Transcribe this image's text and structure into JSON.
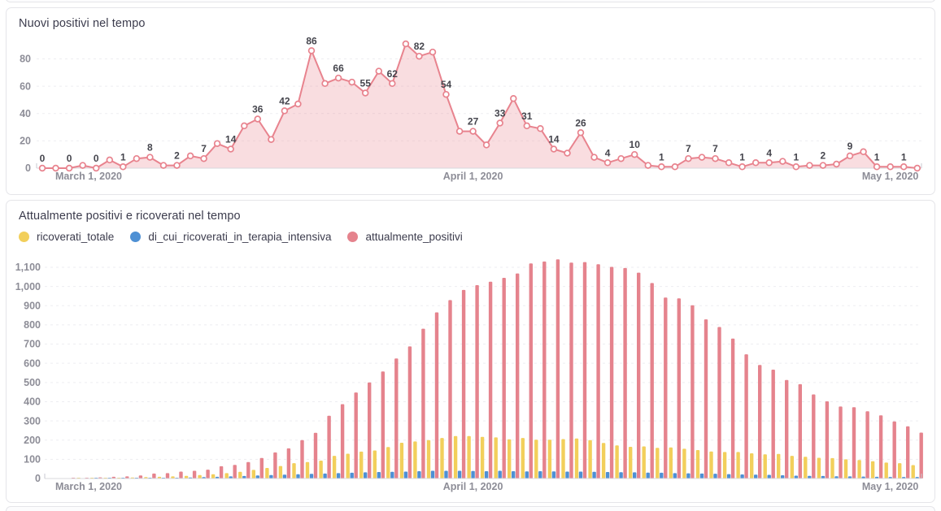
{
  "page": {
    "background": "#ffffff",
    "card_border_color": "#e5e5e9"
  },
  "chart_data": [
    {
      "type": "line",
      "title": "Nuovi positivi nel tempo",
      "x_axis": {
        "tick_labels": [
          "March 1, 2020",
          "April 1, 2020",
          "May 1, 2020"
        ],
        "tick_slots": [
          0,
          32,
          63
        ]
      },
      "ylabel": "",
      "xlabel": "",
      "ylim": [
        0,
        93
      ],
      "yticks": [
        0,
        20,
        40,
        60,
        80
      ],
      "grid": true,
      "line_color": "#e8838e",
      "area_fill": "rgba(232,131,142,0.27)",
      "marker_fill": "#ffffff",
      "point_labels_every": 2,
      "values": [
        0,
        0,
        0,
        2,
        0,
        6,
        1,
        7,
        8,
        2,
        2,
        9,
        7,
        18,
        14,
        31,
        36,
        21,
        42,
        47,
        86,
        62,
        66,
        63,
        55,
        71,
        62,
        91,
        82,
        85,
        54,
        27,
        27,
        17,
        33,
        51,
        31,
        29,
        14,
        11,
        26,
        8,
        4,
        7,
        10,
        2,
        1,
        1,
        7,
        8,
        7,
        4,
        1,
        4,
        4,
        5,
        1,
        2,
        2,
        3,
        9,
        12,
        1,
        1,
        1,
        0
      ],
      "shown_point_labels": [
        "0",
        "0",
        "0",
        "1",
        "8",
        "2",
        "7",
        "14",
        "36",
        "42",
        "86",
        "66",
        "55",
        "62",
        "82",
        "54",
        "27",
        "33",
        "31",
        "14",
        "26",
        "4",
        "10",
        "1",
        "7",
        "7",
        "1",
        "4",
        "1",
        "2",
        "9",
        "1",
        "1"
      ]
    },
    {
      "type": "bar",
      "title": "Attualmente positivi e ricoverati nel tempo",
      "x_axis": {
        "tick_labels": [
          "March 1, 2020",
          "April 1, 2020",
          "May 1, 2020"
        ],
        "tick_slots": [
          0,
          32,
          63
        ]
      },
      "ylabel": "",
      "xlabel": "",
      "ylim": [
        0,
        1160
      ],
      "yticks": [
        0,
        100,
        200,
        300,
        400,
        500,
        600,
        700,
        800,
        900,
        1000,
        1100
      ],
      "grid": true,
      "legend_position": "top",
      "series": [
        {
          "name": "ricoverati_totale",
          "color": "#f2cf5b",
          "values": [
            0,
            0,
            0,
            1,
            1,
            2,
            3,
            5,
            7,
            9,
            11,
            14,
            18,
            22,
            28,
            35,
            45,
            55,
            65,
            80,
            86,
            93,
            118,
            129,
            140,
            146,
            164,
            186,
            193,
            200,
            211,
            221,
            221,
            217,
            214,
            204,
            211,
            202,
            202,
            205,
            208,
            200,
            185,
            172,
            165,
            167,
            160,
            162,
            155,
            148,
            141,
            138,
            138,
            131,
            126,
            128,
            118,
            113,
            108,
            106,
            100,
            96,
            90,
            83,
            80,
            70
          ]
        },
        {
          "name": "di_cui_ricoverati_in_terapia_intensiva",
          "color": "#4e90d4",
          "values": [
            0,
            0,
            0,
            0,
            1,
            1,
            1,
            2,
            3,
            3,
            4,
            5,
            7,
            9,
            11,
            13,
            16,
            18,
            20,
            22,
            24,
            26,
            28,
            30,
            32,
            34,
            35,
            36,
            38,
            40,
            40,
            40,
            39,
            38,
            40,
            38,
            37,
            38,
            37,
            36,
            36,
            35,
            34,
            33,
            32,
            31,
            30,
            28,
            27,
            26,
            25,
            23,
            21,
            20,
            19,
            17,
            15,
            14,
            13,
            12,
            11,
            10,
            9,
            8,
            8,
            8
          ]
        },
        {
          "name": "attualmente_positivi",
          "color": "#e5838d",
          "values": [
            0,
            0,
            2,
            4,
            6,
            9,
            11,
            16,
            26,
            28,
            36,
            40,
            46,
            64,
            71,
            86,
            107,
            136,
            157,
            200,
            238,
            327,
            387,
            448,
            500,
            557,
            625,
            688,
            780,
            865,
            929,
            982,
            1007,
            1025,
            1045,
            1068,
            1120,
            1130,
            1141,
            1124,
            1127,
            1116,
            1102,
            1096,
            1072,
            1018,
            942,
            938,
            902,
            829,
            789,
            729,
            647,
            591,
            567,
            513,
            491,
            438,
            402,
            375,
            371,
            350,
            329,
            297,
            272,
            239
          ]
        }
      ]
    }
  ]
}
